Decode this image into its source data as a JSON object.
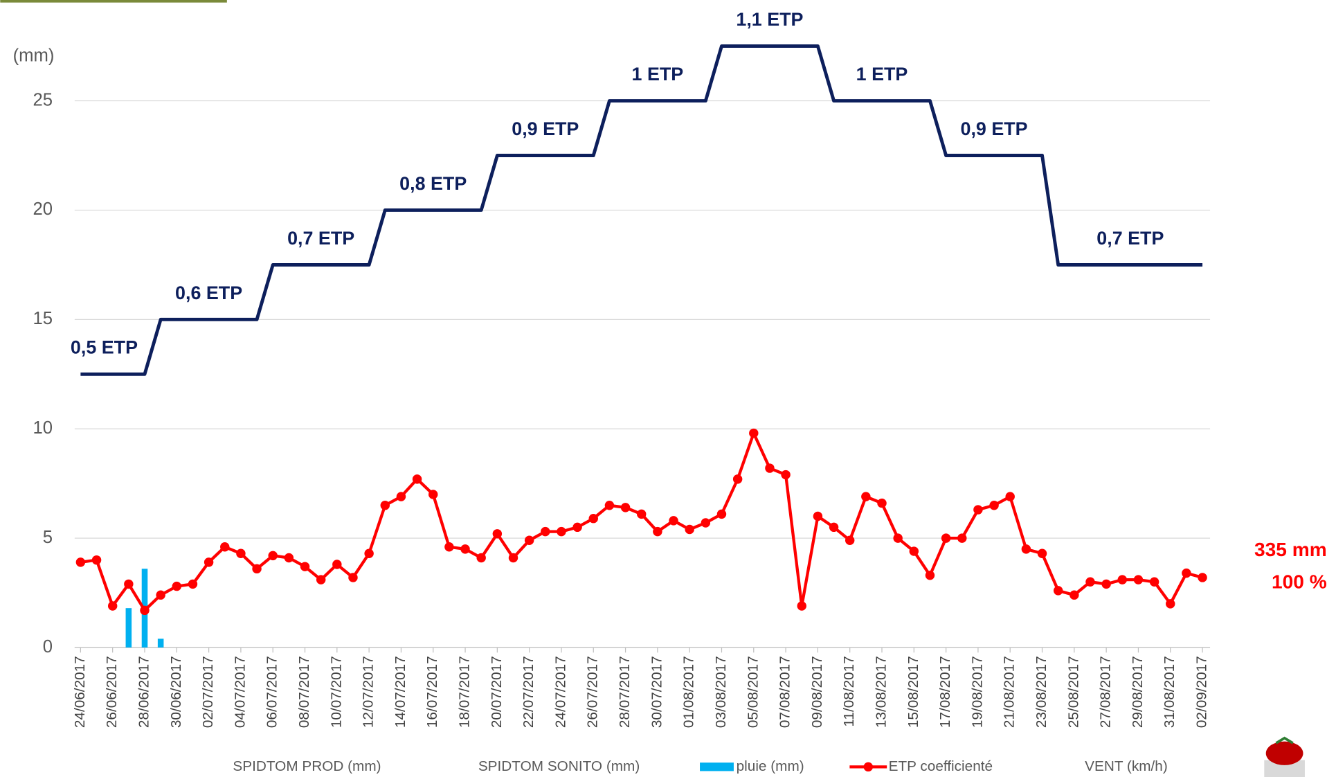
{
  "chart_data": {
    "type": "line",
    "y_label": "(mm)",
    "categories": [
      "24/06/2017",
      null,
      "26/06/2017",
      null,
      "28/06/2017",
      null,
      "30/06/2017",
      null,
      "02/07/2017",
      null,
      "04/07/2017",
      null,
      "06/07/2017",
      null,
      "08/07/2017",
      null,
      "10/07/2017",
      null,
      "12/07/2017",
      null,
      "14/07/2017",
      null,
      "16/07/2017",
      null,
      "18/07/2017",
      null,
      "20/07/2017",
      null,
      "22/07/2017",
      null,
      "24/07/2017",
      null,
      "26/07/2017",
      null,
      "28/07/2017",
      null,
      "30/07/2017",
      null,
      "01/08/2017",
      null,
      "03/08/2017",
      null,
      "05/08/2017",
      null,
      "07/08/2017",
      null,
      "09/08/2017",
      null,
      "11/08/2017",
      null,
      "13/08/2017",
      null,
      "15/08/2017",
      null,
      "17/08/2017",
      null,
      "19/08/2017",
      null,
      "21/08/2017",
      null,
      "23/08/2017",
      null,
      "25/08/2017",
      null,
      "27/08/2017",
      null,
      "29/08/2017",
      null,
      "31/08/2017",
      null,
      "02/09/2017"
    ],
    "ylim": [
      0,
      27.5
    ],
    "yticks": [
      0,
      5,
      10,
      15,
      20,
      25
    ],
    "grid": true,
    "series": [
      {
        "name": "SPIDTOM PROD (mm)"
      },
      {
        "name": "SPIDTOM SONITO (mm)"
      },
      {
        "name": "pluie (mm)",
        "kind": "bar",
        "color": "#00b0f0",
        "values": [
          null,
          null,
          null,
          1.8,
          3.6,
          0.4,
          null,
          null,
          null,
          null,
          null,
          null,
          null,
          null,
          null,
          null,
          null,
          null,
          null,
          null,
          null,
          null,
          null,
          null,
          null,
          null,
          null,
          null,
          null,
          null,
          null,
          null,
          null,
          null,
          null,
          null,
          null,
          null,
          null,
          null,
          null,
          null,
          null,
          null,
          null,
          null,
          null,
          null,
          null,
          null,
          null,
          null,
          null,
          null,
          null,
          null,
          null,
          null,
          null,
          null,
          null,
          null,
          null,
          null,
          null,
          null,
          null,
          null,
          null,
          null,
          null
        ]
      },
      {
        "name": "ETP coefficienté",
        "kind": "line",
        "marker": true,
        "color": "#ff0000",
        "values": [
          3.9,
          4.0,
          1.9,
          2.9,
          1.7,
          2.4,
          2.8,
          2.9,
          3.9,
          4.6,
          4.3,
          3.6,
          4.2,
          4.1,
          3.7,
          3.1,
          3.8,
          3.2,
          4.3,
          6.5,
          6.9,
          7.7,
          7.0,
          4.6,
          4.5,
          4.1,
          5.2,
          4.1,
          4.9,
          5.3,
          5.3,
          5.5,
          5.9,
          6.5,
          6.4,
          6.1,
          5.3,
          5.8,
          5.4,
          5.7,
          6.1,
          7.7,
          9.8,
          8.2,
          7.9,
          1.9,
          6.0,
          5.5,
          4.9,
          6.9,
          6.6,
          5.0,
          4.4,
          3.3,
          5.0,
          5.0,
          6.3,
          6.5,
          6.9,
          4.5,
          4.3,
          2.6,
          2.4,
          3.0,
          2.9,
          3.1,
          3.1,
          3.0,
          2.0,
          3.4,
          3.2
        ]
      },
      {
        "name": "VENT (km/h)"
      },
      {
        "kind": "line",
        "marker": false,
        "color": "#0d1f5c",
        "values": [
          12.5,
          12.5,
          12.5,
          12.5,
          12.5,
          15,
          15,
          15,
          15,
          15,
          15,
          15,
          17.5,
          17.5,
          17.5,
          17.5,
          17.5,
          17.5,
          17.5,
          20,
          20,
          20,
          20,
          20,
          20,
          20,
          22.5,
          22.5,
          22.5,
          22.5,
          22.5,
          22.5,
          22.5,
          25,
          25,
          25,
          25,
          25,
          25,
          25,
          27.5,
          27.5,
          27.5,
          27.5,
          27.5,
          27.5,
          27.5,
          25,
          25,
          25,
          25,
          25,
          25,
          25,
          22.5,
          22.5,
          22.5,
          22.5,
          22.5,
          22.5,
          22.5,
          17.5,
          17.5,
          17.5,
          17.5,
          17.5,
          17.5,
          17.5,
          17.5,
          17.5,
          17.5
        ]
      }
    ],
    "annotations": [
      "0,5 ETP",
      "0,6 ETP",
      "0,7 ETP",
      "0,8 ETP",
      "0,9 ETP",
      "1 ETP",
      "1,1 ETP",
      "1 ETP",
      "0,9 ETP",
      "0,7 ETP"
    ],
    "side_labels": [
      "335 mm",
      "100 %"
    ]
  }
}
